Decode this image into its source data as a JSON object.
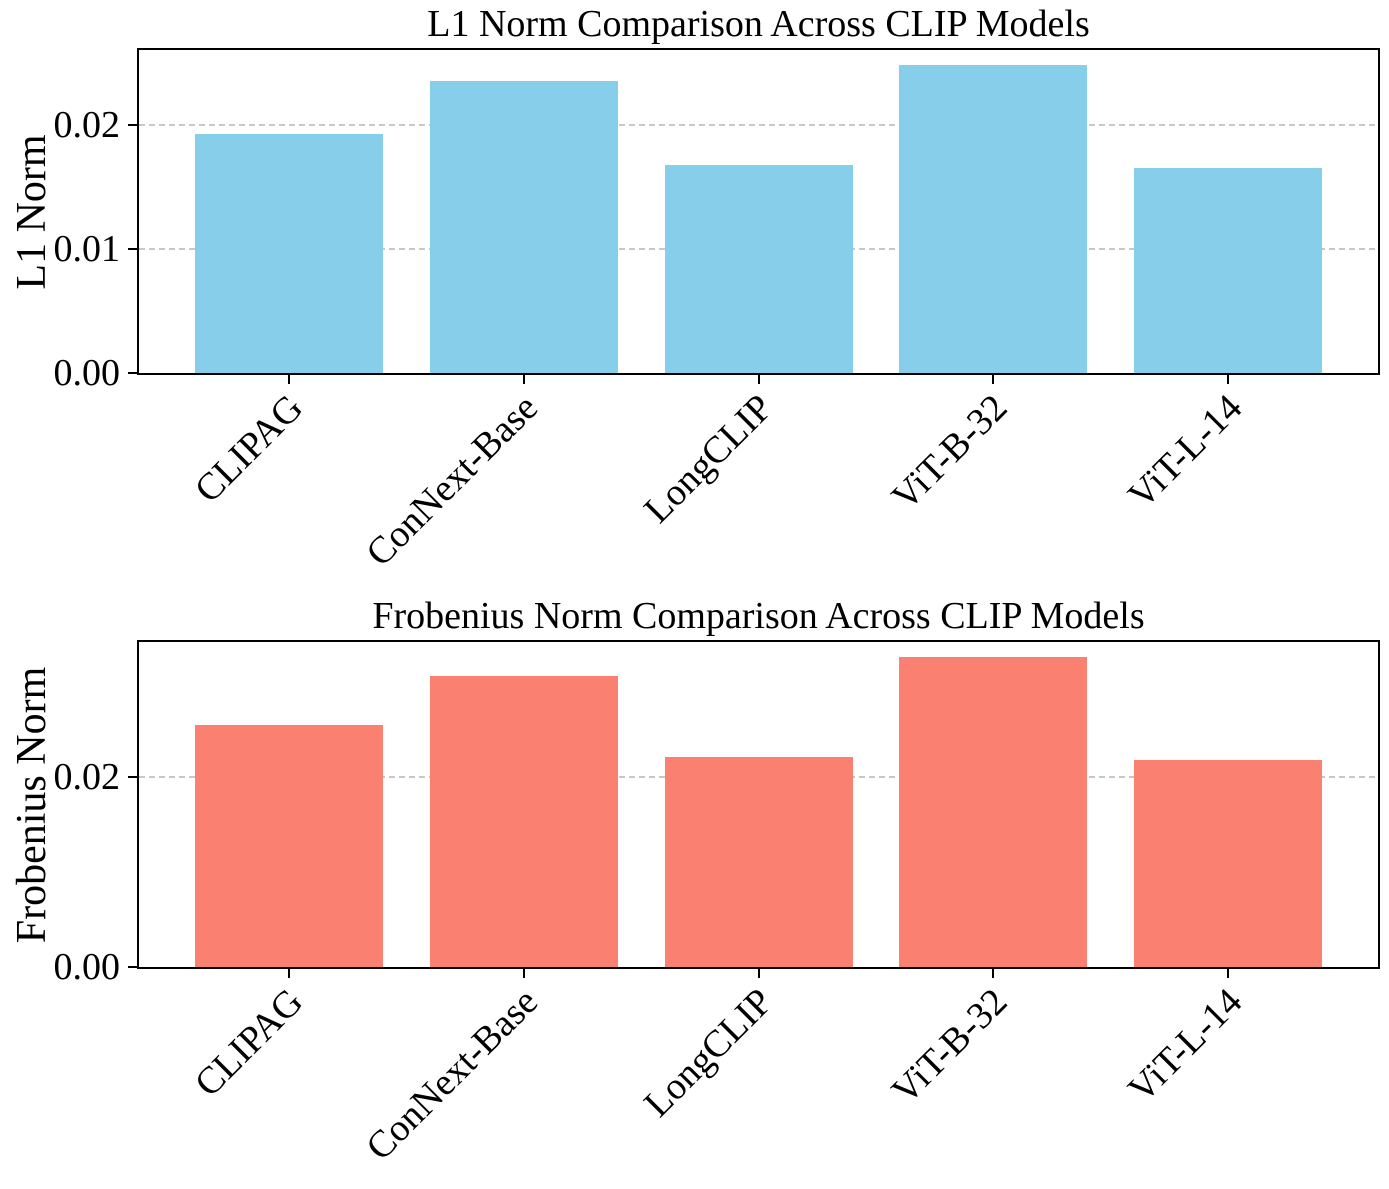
{
  "chart_data": [
    {
      "type": "bar",
      "title": "L1 Norm Comparison Across CLIP Models",
      "ylabel": "L1 Norm",
      "xlabel": "",
      "categories": [
        "CLIPAG",
        "ConNext-Base",
        "LongCLIP",
        "ViT-B-32",
        "ViT-L-14"
      ],
      "values": [
        0.0193,
        0.0236,
        0.0168,
        0.0249,
        0.0166
      ],
      "bar_color": "#87CEEB",
      "ylim": [
        0,
        0.0261
      ],
      "yticks": [
        {
          "value": 0.0,
          "label": "0.00"
        },
        {
          "value": 0.01,
          "label": "0.01"
        },
        {
          "value": 0.02,
          "label": "0.02"
        }
      ],
      "grid": {
        "axis": "y",
        "style": "dashed",
        "color": "#c8c8c8",
        "on": true
      },
      "legend": "none",
      "xtick_rotation_deg": 45
    },
    {
      "type": "bar",
      "title": "Frobenius Norm Comparison Across CLIP Models",
      "ylabel": "Frobenius Norm",
      "xlabel": "",
      "categories": [
        "CLIPAG",
        "ConNext-Base",
        "LongCLIP",
        "ViT-B-32",
        "ViT-L-14"
      ],
      "values": [
        0.0255,
        0.0307,
        0.0222,
        0.0327,
        0.0218
      ],
      "bar_color": "#FA8072",
      "ylim": [
        0,
        0.0343
      ],
      "yticks": [
        {
          "value": 0.0,
          "label": "0.00"
        },
        {
          "value": 0.02,
          "label": "0.02"
        }
      ],
      "grid": {
        "axis": "y",
        "style": "dashed",
        "color": "#c8c8c8",
        "on": true
      },
      "legend": "none",
      "xtick_rotation_deg": 45
    }
  ],
  "colors": {
    "l1_bar": "#87CEEB",
    "frobenius_bar": "#FA8072",
    "spine": "#000000",
    "grid": "#c8c8c8",
    "text": "#000000",
    "background": "#ffffff"
  }
}
